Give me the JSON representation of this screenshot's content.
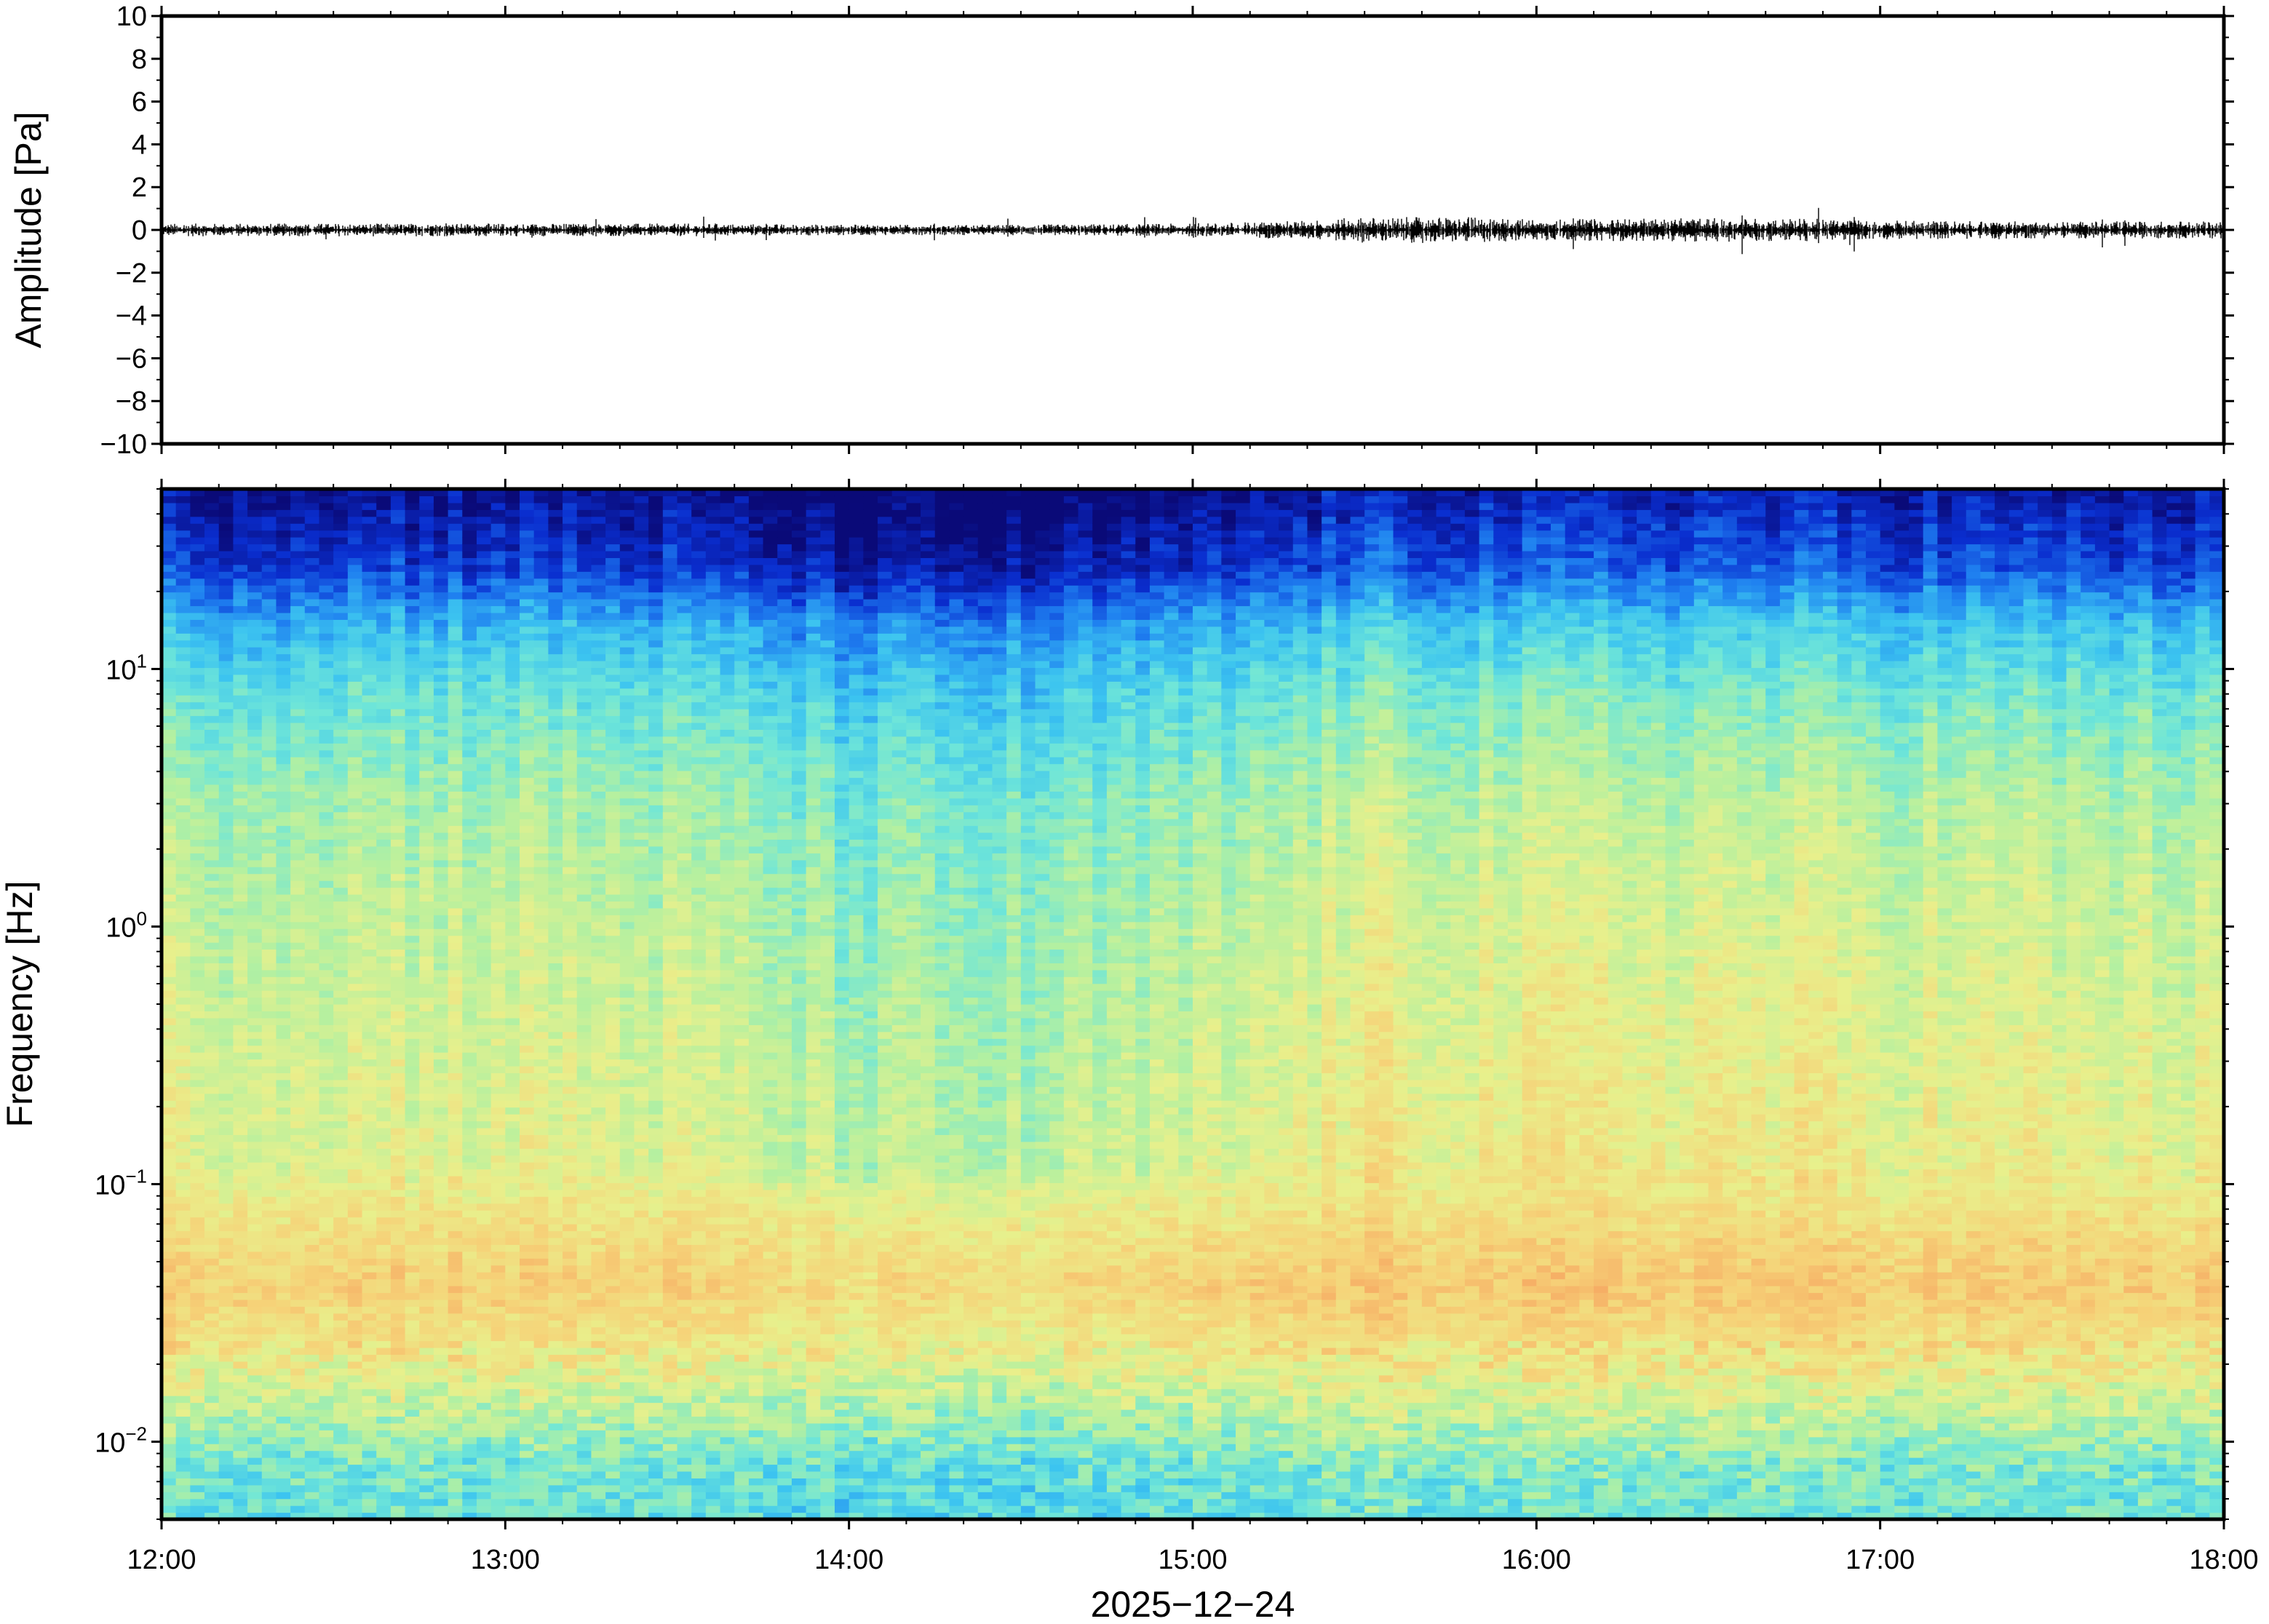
{
  "chart_data": [
    {
      "type": "line",
      "panel": "waveform",
      "ylabel": "Amplitude [Pa]",
      "ylim": [
        -10,
        10
      ],
      "yticks": [
        "10",
        "8",
        "6",
        "4",
        "2",
        "0",
        "−2",
        "−4",
        "−6",
        "−8",
        "−10"
      ],
      "ytick_values": [
        10,
        8,
        6,
        4,
        2,
        0,
        -2,
        -4,
        -6,
        -8,
        -10
      ],
      "xlim": [
        "2025-12-24 12:00",
        "2025-12-24 18:00"
      ],
      "series_color": "#000000",
      "envelope": {
        "time": [
          "12:00",
          "12:30",
          "13:00",
          "13:30",
          "14:00",
          "14:30",
          "15:00",
          "15:20",
          "15:30",
          "15:40",
          "15:50",
          "16:00",
          "16:30",
          "16:45",
          "17:00",
          "17:30",
          "18:00"
        ],
        "amplitude_pa": [
          0.3,
          0.3,
          0.3,
          0.3,
          0.25,
          0.25,
          0.3,
          0.45,
          0.6,
          0.6,
          0.6,
          0.5,
          0.55,
          0.55,
          0.45,
          0.4,
          0.4
        ]
      }
    },
    {
      "type": "heatmap",
      "panel": "spectrogram",
      "ylabel": "Frequency [Hz]",
      "yscale": "log",
      "ylim_hz": [
        0.005,
        50
      ],
      "yticks": [
        {
          "value": 0.01,
          "base": "10",
          "exp": "−2"
        },
        {
          "value": 0.1,
          "base": "10",
          "exp": "−1"
        },
        {
          "value": 1,
          "base": "10",
          "exp": "0"
        },
        {
          "value": 10,
          "base": "10",
          "exp": "1"
        }
      ],
      "xlabel": "2025−12−24",
      "xticks": [
        "12:00",
        "13:00",
        "14:00",
        "15:00",
        "16:00",
        "17:00",
        "18:00"
      ],
      "xlim": [
        "12:00",
        "18:00"
      ],
      "colormap": [
        "#0a0a78",
        "#0a2ecf",
        "#1f80f0",
        "#3cc4f0",
        "#6fe6d8",
        "#b4f0a0",
        "#e8f08c",
        "#f6d278",
        "#f6a862",
        "#ef6a4a"
      ],
      "relative_power_profile": {
        "frequency_hz": [
          0.005,
          0.008,
          0.012,
          0.02,
          0.04,
          0.07,
          0.12,
          0.3,
          1,
          3,
          8,
          15,
          25,
          50
        ],
        "level": [
          0.42,
          0.45,
          0.55,
          0.68,
          0.78,
          0.72,
          0.64,
          0.62,
          0.58,
          0.53,
          0.42,
          0.3,
          0.12,
          0.02
        ]
      },
      "time_variation": {
        "time": [
          "12:00",
          "13:00",
          "13:30",
          "14:00",
          "14:30",
          "15:00",
          "15:30",
          "16:00",
          "16:30",
          "17:00",
          "18:00"
        ],
        "offset": [
          0.02,
          0.02,
          0.0,
          -0.07,
          -0.08,
          -0.03,
          0.06,
          0.05,
          0.06,
          0.04,
          0.02
        ]
      }
    }
  ]
}
